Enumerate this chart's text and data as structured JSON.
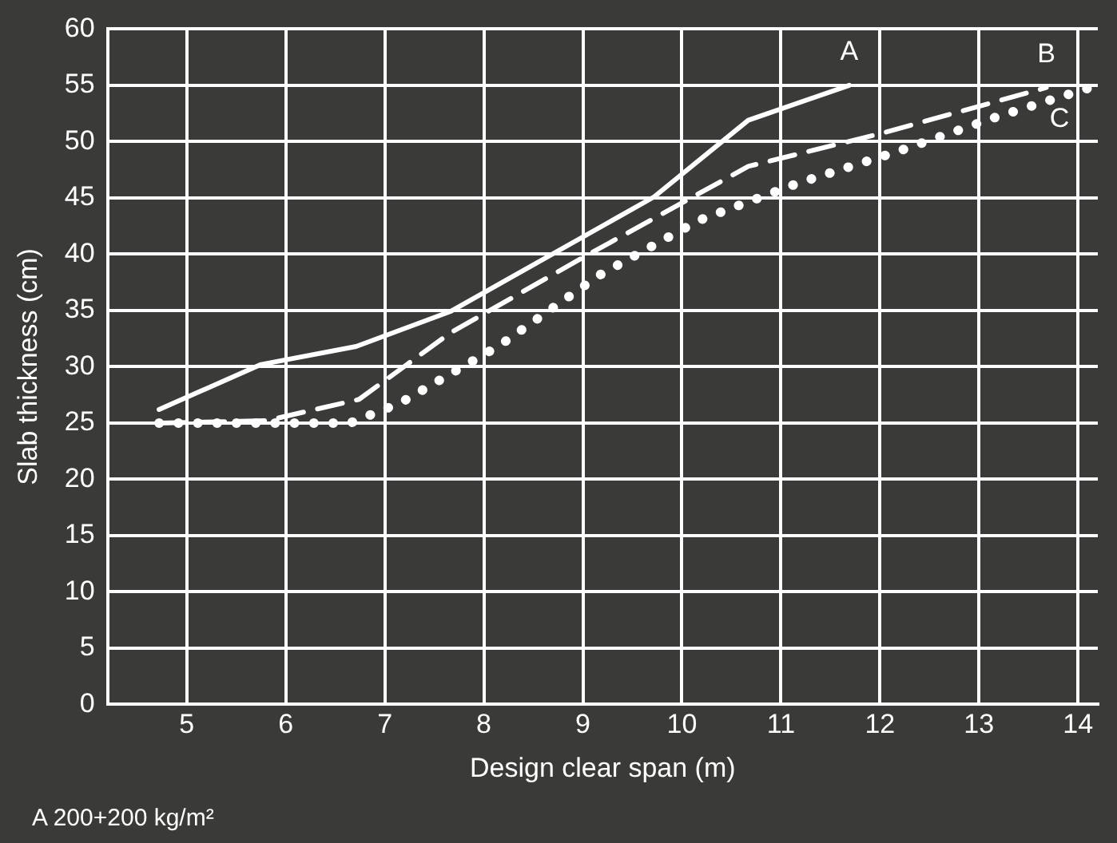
{
  "chart_data": {
    "type": "line",
    "xlabel": "Design clear span (m)",
    "ylabel": "Slab thickness (cm)",
    "xlim": [
      4.2,
      14.2
    ],
    "xticks": [
      5,
      6,
      7,
      8,
      9,
      10,
      11,
      12,
      13,
      14
    ],
    "ylim": [
      0,
      60
    ],
    "yticks": [
      0,
      5,
      10,
      15,
      20,
      25,
      30,
      35,
      40,
      45,
      50,
      55,
      60
    ],
    "grid": true,
    "legend": false,
    "marker": "none",
    "annotations": [
      "A 200+200 kg/m²"
    ],
    "series": [
      {
        "name": "A",
        "color": "#ffffff",
        "line_style": "solid",
        "x": [
          4.72,
          5.75,
          6.71,
          7.66,
          9.72,
          10.67,
          11.69
        ],
        "values": [
          26.2,
          30.2,
          31.8,
          34.9,
          45.1,
          51.9,
          55
        ]
      },
      {
        "name": "B",
        "color": "#ffffff",
        "line_style": "dashed",
        "x": [
          4.72,
          5.8,
          6.74,
          7.66,
          9,
          10.67,
          12,
          13.68
        ],
        "values": [
          25,
          25.2,
          27.1,
          33,
          39.7,
          47.8,
          50.7,
          54.8
        ]
      },
      {
        "name": "C",
        "color": "#ffffff",
        "line_style": "dotted",
        "x": [
          4.72,
          6.65,
          7.16,
          8.16,
          9.16,
          10.17,
          11.17,
          12.17,
          13.18,
          14.16
        ],
        "values": [
          25,
          25,
          26.8,
          31.9,
          38.1,
          43,
          46.3,
          49.1,
          52.2,
          54.9
        ]
      }
    ]
  }
}
